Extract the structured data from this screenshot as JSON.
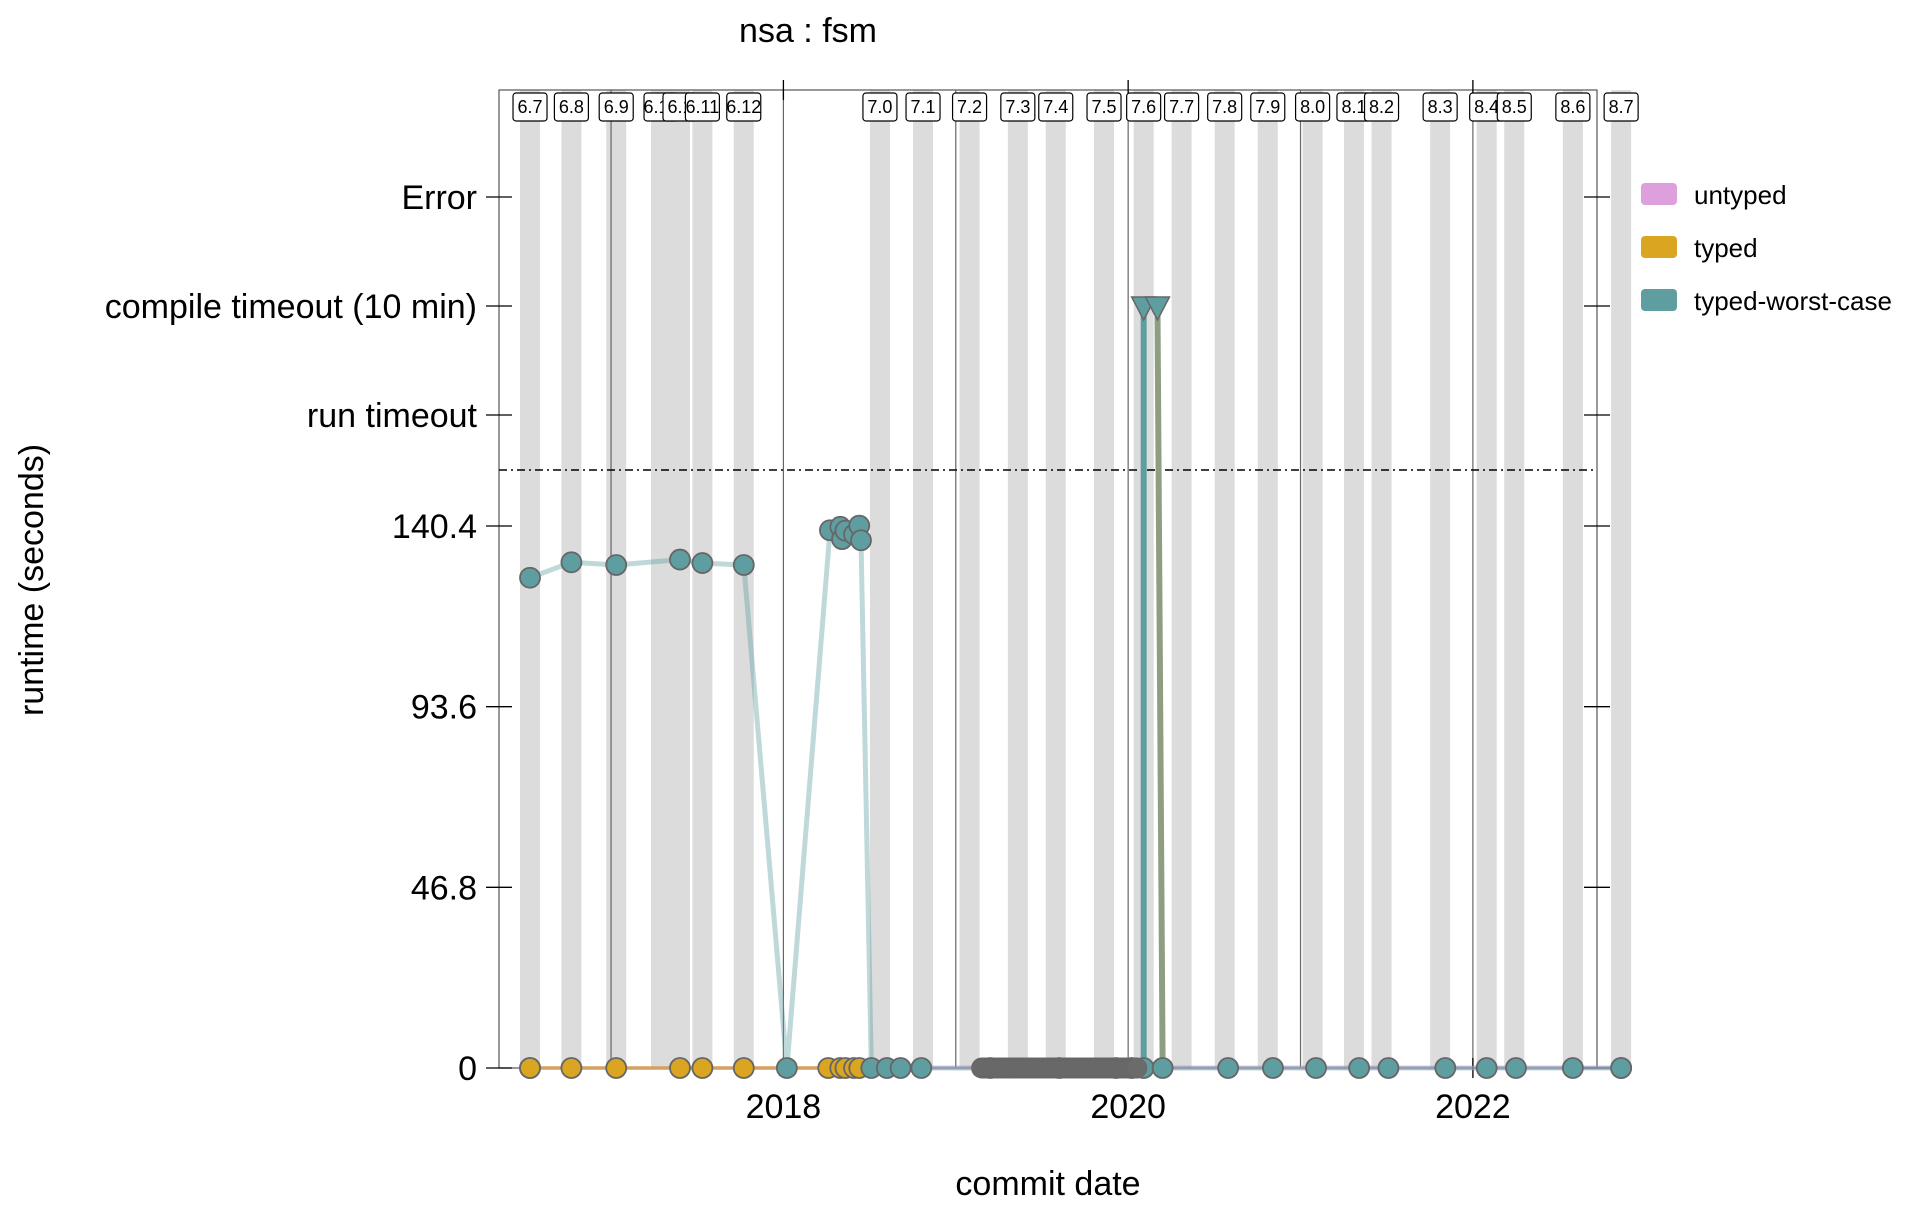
{
  "chart_data": {
    "type": "line",
    "title": "nsa : fsm",
    "xlabel": "commit date",
    "ylabel": "runtime (seconds)",
    "x_ticks": [
      "2018",
      "2020",
      "2022"
    ],
    "x_tick_values": [
      2018.0,
      2020.0,
      2022.0
    ],
    "xlim": [
      2016.35,
      2022.72
    ],
    "y_ticks": [
      "0",
      "46.8",
      "93.6",
      "140.4"
    ],
    "y_tick_values": [
      0,
      46.8,
      93.6,
      140.4
    ],
    "ylim": [
      0,
      156
    ],
    "y_categories": [
      "run timeout",
      "compile timeout (10 min)",
      "Error"
    ],
    "legend": {
      "position": "right",
      "entries": [
        {
          "name": "untyped",
          "color": "#dda0dd"
        },
        {
          "name": "typed",
          "color": "#daa520"
        },
        {
          "name": "typed-worst-case",
          "color": "#5f9ea0"
        }
      ]
    },
    "releases": [
      {
        "label": "6.7",
        "x": 2016.53
      },
      {
        "label": "6.8",
        "x": 2016.77
      },
      {
        "label": "6.9",
        "x": 2017.03
      },
      {
        "label": "6.10",
        "x": 2017.29
      },
      {
        "label": "6.1",
        "x": 2017.4
      },
      {
        "label": "6.11",
        "x": 2017.53
      },
      {
        "label": "6.12",
        "x": 2017.77
      },
      {
        "label": "7.0",
        "x": 2018.56
      },
      {
        "label": "7.1",
        "x": 2018.81
      },
      {
        "label": "7.2",
        "x": 2019.08
      },
      {
        "label": "7.3",
        "x": 2019.36
      },
      {
        "label": "7.4",
        "x": 2019.58
      },
      {
        "label": "7.5",
        "x": 2019.86
      },
      {
        "label": "7.6",
        "x": 2020.09
      },
      {
        "label": "7.7",
        "x": 2020.31
      },
      {
        "label": "7.8",
        "x": 2020.56
      },
      {
        "label": "7.9",
        "x": 2020.81
      },
      {
        "label": "8.0",
        "x": 2021.07
      },
      {
        "label": "8.1",
        "x": 2021.31
      },
      {
        "label": "8.2",
        "x": 2021.47
      },
      {
        "label": "8.3",
        "x": 2021.81
      },
      {
        "label": "8.4",
        "x": 2022.08
      },
      {
        "label": "8.5",
        "x": 2022.24
      },
      {
        "label": "8.6",
        "x": 2022.58
      },
      {
        "label": "8.7",
        "x": 2022.86
      }
    ],
    "series": [
      {
        "name": "typed-worst-case",
        "color": "#5f9ea0",
        "points": [
          {
            "x": 2016.53,
            "y": 127.0
          },
          {
            "x": 2016.77,
            "y": 131.0
          },
          {
            "x": 2017.03,
            "y": 130.3
          },
          {
            "x": 2017.4,
            "y": 131.7
          },
          {
            "x": 2017.53,
            "y": 130.8
          },
          {
            "x": 2017.77,
            "y": 130.3
          },
          {
            "x": 2018.02,
            "y": 0
          },
          {
            "x": 2018.27,
            "y": 139.3
          },
          {
            "x": 2018.33,
            "y": 140.2
          },
          {
            "x": 2018.34,
            "y": 137.0
          },
          {
            "x": 2018.36,
            "y": 139.2
          },
          {
            "x": 2018.41,
            "y": 138.2
          },
          {
            "x": 2018.44,
            "y": 140.5
          },
          {
            "x": 2018.45,
            "y": 136.7
          },
          {
            "x": 2018.51,
            "y": 0
          },
          {
            "x": 2018.6,
            "y": 0
          },
          {
            "x": 2018.68,
            "y": 0
          },
          {
            "x": 2018.8,
            "y": 0
          },
          {
            "x": 2019.2,
            "y": 0
          },
          {
            "x": 2019.6,
            "y": 0
          },
          {
            "x": 2019.93,
            "y": 0
          },
          {
            "x": 2020.02,
            "y": 0
          },
          {
            "x": 2020.09,
            "y": 0
          },
          {
            "x": 2020.09,
            "y": "compile timeout (10 min)"
          },
          {
            "x": 2020.17,
            "y": "compile timeout (10 min)"
          },
          {
            "x": 2020.2,
            "y": 0
          },
          {
            "x": 2020.58,
            "y": 0
          },
          {
            "x": 2020.84,
            "y": 0
          },
          {
            "x": 2021.09,
            "y": 0
          },
          {
            "x": 2021.34,
            "y": 0
          },
          {
            "x": 2021.51,
            "y": 0
          },
          {
            "x": 2021.84,
            "y": 0
          },
          {
            "x": 2022.08,
            "y": 0
          },
          {
            "x": 2022.25,
            "y": 0
          },
          {
            "x": 2022.58,
            "y": 0
          },
          {
            "x": 2022.86,
            "y": 0
          }
        ]
      },
      {
        "name": "typed",
        "color": "#daa520",
        "points": [
          {
            "x": 2016.53,
            "y": 0
          },
          {
            "x": 2016.77,
            "y": 0
          },
          {
            "x": 2017.03,
            "y": 0
          },
          {
            "x": 2017.4,
            "y": 0
          },
          {
            "x": 2017.53,
            "y": 0
          },
          {
            "x": 2017.77,
            "y": 0
          },
          {
            "x": 2018.26,
            "y": 0
          },
          {
            "x": 2018.33,
            "y": 0
          },
          {
            "x": 2018.36,
            "y": 0
          },
          {
            "x": 2018.41,
            "y": 0
          },
          {
            "x": 2018.44,
            "y": 0
          }
        ]
      },
      {
        "name": "untyped",
        "color": "#dda0dd",
        "points": [
          {
            "x": 2016.53,
            "y": 0
          },
          {
            "x": 2022.86,
            "y": 0
          }
        ]
      }
    ]
  }
}
